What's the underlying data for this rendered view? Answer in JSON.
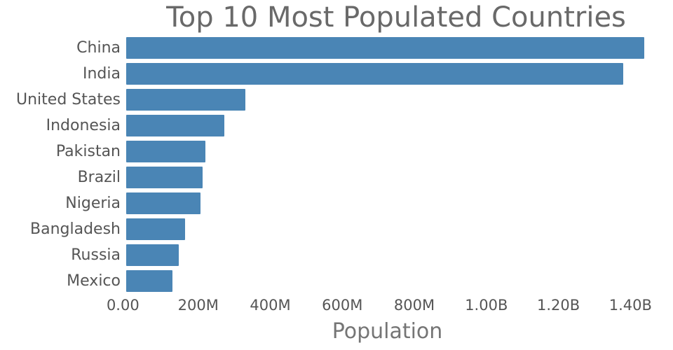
{
  "title": "Top 10 Most Populated Countries",
  "colors": {
    "bar": "#4a85b5",
    "title_text": "#696969",
    "tick_text": "#555555",
    "axis_title_text": "#757575",
    "background": "#ffffff"
  },
  "chart_data": {
    "type": "bar",
    "orientation": "horizontal",
    "title": "Top 10 Most Populated Countries",
    "xlabel": "Population",
    "ylabel": "",
    "grid": false,
    "legend": false,
    "categories": [
      "China",
      "India",
      "United States",
      "Indonesia",
      "Pakistan",
      "Brazil",
      "Nigeria",
      "Bangladesh",
      "Russia",
      "Mexico"
    ],
    "values": [
      1439000000,
      1380000000,
      331000000,
      273000000,
      220000000,
      212000000,
      206000000,
      164000000,
      145000000,
      128000000
    ],
    "xlim": [
      0,
      1450000000
    ],
    "xticks": [
      {
        "value": 0,
        "label": "0.00"
      },
      {
        "value": 200000000,
        "label": "200M"
      },
      {
        "value": 400000000,
        "label": "400M"
      },
      {
        "value": 600000000,
        "label": "600M"
      },
      {
        "value": 800000000,
        "label": "800M"
      },
      {
        "value": 1000000000,
        "label": "1.00B"
      },
      {
        "value": 1200000000,
        "label": "1.20B"
      },
      {
        "value": 1400000000,
        "label": "1.40B"
      }
    ]
  }
}
